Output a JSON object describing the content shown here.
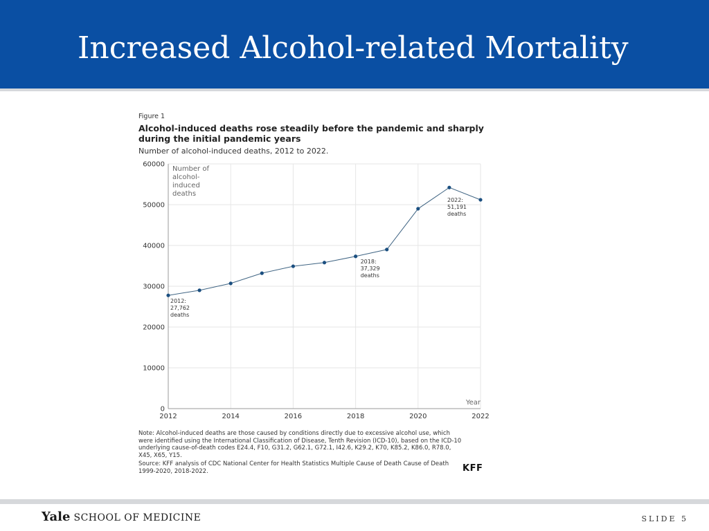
{
  "slide": {
    "title": "Increased Alcohol-related Mortality",
    "footer_logo_main": "Yale",
    "footer_logo_sub": "SCHOOL OF MEDICINE",
    "slide_number": "SLIDE 5",
    "colors": {
      "header_bg": "#0a4fa3",
      "line": "#3f6483",
      "marker": "#1b4f80",
      "footer_rule": "#d6d8db"
    }
  },
  "figure": {
    "label": "Figure 1",
    "title": "Alcohol-induced deaths rose steadily before the pandemic and sharply during the initial pandemic years",
    "subtitle": "Number of alcohol-induced deaths, 2012 to 2022.",
    "note": "Note: Alcohol-induced deaths are those caused by conditions directly due to excessive alcohol use, which were identified using the International Classification of Disease, Tenth Revision (ICD-10), based on the ICD-10 underlying cause-of-death codes E24.4, F10, G31.2, G62.1, G72.1, I42.6, K29.2, K70, K85.2, K86.0, R78.0, X45, X65, Y15.",
    "source": "Source: KFF analysis of CDC National Center for Health Statistics Multiple Cause of Death Cause of Death 1999-2020, 2018-2022.",
    "brand": "KFF"
  },
  "chart_data": {
    "type": "line",
    "title": "Alcohol-induced deaths rose steadily before the pandemic and sharply during the initial pandemic years",
    "subtitle": "Number of alcohol-induced deaths, 2012 to 2022.",
    "xlabel": "Year",
    "ylabel": "Number of alcohol-induced deaths",
    "ylabel_lines": [
      "Number of",
      "alcohol-",
      "induced",
      "deaths"
    ],
    "xlim": [
      2012,
      2022
    ],
    "ylim": [
      0,
      60000
    ],
    "x_ticks": [
      2012,
      2014,
      2016,
      2018,
      2020,
      2022
    ],
    "y_ticks": [
      0,
      10000,
      20000,
      30000,
      40000,
      50000,
      60000
    ],
    "grid": true,
    "legend": "none",
    "series": [
      {
        "x": [
          2012,
          2013,
          2014,
          2015,
          2016,
          2017,
          2018,
          2019,
          2020,
          2021,
          2022
        ],
        "values": [
          27762,
          29000,
          30700,
          33200,
          34900,
          35800,
          37329,
          39000,
          49000,
          54200,
          51191
        ]
      }
    ],
    "annotations": [
      {
        "x": 2012,
        "lines": [
          "2012:",
          "27,762",
          "deaths"
        ]
      },
      {
        "x": 2018,
        "lines": [
          "2018:",
          "37,329",
          "deaths"
        ]
      },
      {
        "x": 2022,
        "lines": [
          "2022:",
          "51,191",
          "deaths"
        ]
      }
    ]
  }
}
